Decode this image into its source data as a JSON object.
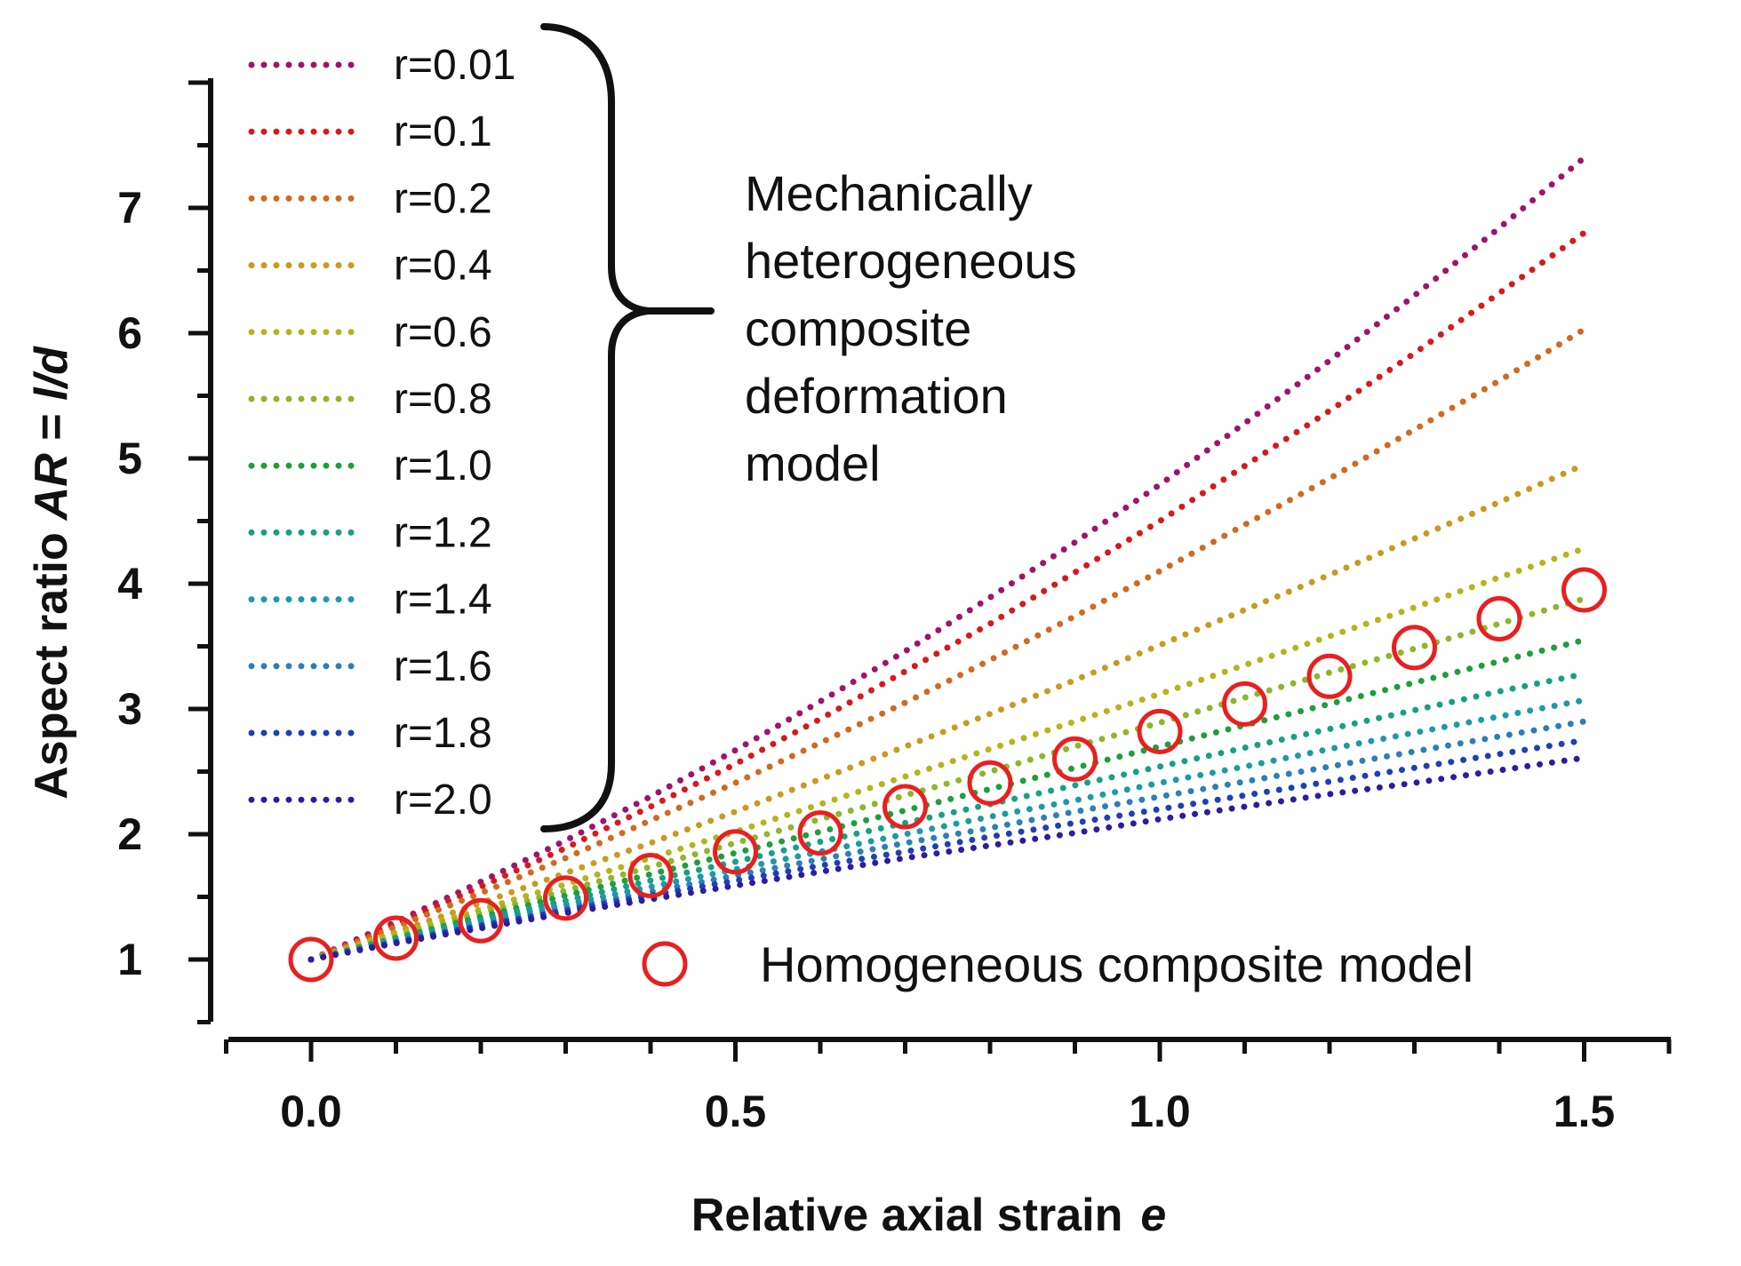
{
  "chart_data": {
    "type": "line",
    "title": "",
    "xlabel": "Relative axial strain",
    "xlabel_symbol": "e",
    "ylabel": "Aspect ratio",
    "ylabel_symbol": "AR",
    "ylabel_eq": " = ",
    "ylabel_formula": "l/d",
    "xlim": [
      -0.1,
      1.6
    ],
    "ylim": [
      0.5,
      7.8
    ],
    "xticks": [
      "0.0",
      "0.5",
      "1.0",
      "1.5"
    ],
    "xtick_values": [
      0,
      0.5,
      1.0,
      1.5
    ],
    "yticks": [
      "1",
      "2",
      "3",
      "4",
      "5",
      "6",
      "7"
    ],
    "ytick_values": [
      1,
      2,
      3,
      4,
      5,
      6,
      7
    ],
    "annotation_lines": [
      "Mechanically",
      "heterogeneous",
      "composite",
      "deformation",
      "model"
    ],
    "series": [
      {
        "name": "r=0.01",
        "style": "dotted",
        "color": "#a0136b",
        "x": [
          0,
          0.1,
          0.2,
          0.3,
          0.4,
          0.5,
          0.6,
          0.7,
          0.8,
          0.9,
          1.0,
          1.1,
          1.2,
          1.3,
          1.4,
          1.5
        ],
        "values": [
          1.0,
          1.3,
          1.62,
          1.95,
          2.3,
          2.67,
          3.06,
          3.46,
          3.89,
          4.33,
          4.79,
          5.28,
          5.78,
          6.3,
          6.84,
          7.4
        ]
      },
      {
        "name": "r=0.1",
        "style": "dotted",
        "color": "#d7191c",
        "x": [
          0,
          0.1,
          0.2,
          0.3,
          0.4,
          0.5,
          0.6,
          0.7,
          0.8,
          0.9,
          1.0,
          1.1,
          1.2,
          1.3,
          1.4,
          1.5
        ],
        "values": [
          1.0,
          1.28,
          1.58,
          1.89,
          2.22,
          2.56,
          2.92,
          3.3,
          3.68,
          4.09,
          4.5,
          4.94,
          5.38,
          5.84,
          6.32,
          6.8
        ]
      },
      {
        "name": "r=0.2",
        "style": "dotted",
        "color": "#d2691e",
        "x": [
          0,
          0.1,
          0.2,
          0.3,
          0.4,
          0.5,
          0.6,
          0.7,
          0.8,
          0.9,
          1.0,
          1.1,
          1.2,
          1.3,
          1.4,
          1.5
        ],
        "values": [
          1.0,
          1.26,
          1.53,
          1.81,
          2.11,
          2.41,
          2.73,
          3.05,
          3.39,
          3.74,
          4.1,
          4.47,
          4.84,
          5.23,
          5.62,
          6.03
        ]
      },
      {
        "name": "r=0.4",
        "style": "dotted",
        "color": "#c89a1f",
        "x": [
          0,
          0.1,
          0.2,
          0.3,
          0.4,
          0.5,
          0.6,
          0.7,
          0.8,
          0.9,
          1.0,
          1.1,
          1.2,
          1.3,
          1.4,
          1.5
        ],
        "values": [
          1.0,
          1.22,
          1.45,
          1.69,
          1.93,
          2.18,
          2.44,
          2.7,
          2.96,
          3.23,
          3.51,
          3.79,
          4.07,
          4.36,
          4.65,
          4.95
        ]
      },
      {
        "name": "r=0.6",
        "style": "dotted",
        "color": "#b5b41a",
        "x": [
          0,
          0.1,
          0.2,
          0.3,
          0.4,
          0.5,
          0.6,
          0.7,
          0.8,
          0.9,
          1.0,
          1.1,
          1.2,
          1.3,
          1.4,
          1.5
        ],
        "values": [
          1.0,
          1.2,
          1.4,
          1.6,
          1.81,
          2.02,
          2.24,
          2.46,
          2.68,
          2.9,
          3.12,
          3.35,
          3.58,
          3.81,
          4.05,
          4.28
        ]
      },
      {
        "name": "r=0.8",
        "style": "dotted",
        "color": "#8fb52a",
        "x": [
          0,
          0.1,
          0.2,
          0.3,
          0.4,
          0.5,
          0.6,
          0.7,
          0.8,
          0.9,
          1.0,
          1.1,
          1.2,
          1.3,
          1.4,
          1.5
        ],
        "values": [
          1.0,
          1.18,
          1.37,
          1.55,
          1.74,
          1.93,
          2.12,
          2.31,
          2.5,
          2.7,
          2.89,
          3.09,
          3.29,
          3.48,
          3.68,
          3.88
        ]
      },
      {
        "name": "r=1.0",
        "style": "dotted",
        "color": "#1e9e3c",
        "x": [
          0,
          0.1,
          0.2,
          0.3,
          0.4,
          0.5,
          0.6,
          0.7,
          0.8,
          0.9,
          1.0,
          1.1,
          1.2,
          1.3,
          1.4,
          1.5
        ],
        "values": [
          1.0,
          1.17,
          1.34,
          1.51,
          1.68,
          1.85,
          2.02,
          2.19,
          2.36,
          2.53,
          2.7,
          2.87,
          3.04,
          3.21,
          3.38,
          3.55
        ]
      },
      {
        "name": "r=1.2",
        "style": "dotted",
        "color": "#16a085",
        "x": [
          0,
          0.1,
          0.2,
          0.3,
          0.4,
          0.5,
          0.6,
          0.7,
          0.8,
          0.9,
          1.0,
          1.1,
          1.2,
          1.3,
          1.4,
          1.5
        ],
        "values": [
          1.0,
          1.16,
          1.32,
          1.47,
          1.63,
          1.78,
          1.94,
          2.09,
          2.24,
          2.39,
          2.54,
          2.69,
          2.84,
          2.99,
          3.14,
          3.28
        ]
      },
      {
        "name": "r=1.4",
        "style": "dotted",
        "color": "#1c9aa6",
        "x": [
          0,
          0.1,
          0.2,
          0.3,
          0.4,
          0.5,
          0.6,
          0.7,
          0.8,
          0.9,
          1.0,
          1.1,
          1.2,
          1.3,
          1.4,
          1.5
        ],
        "values": [
          1.0,
          1.15,
          1.3,
          1.44,
          1.58,
          1.72,
          1.86,
          2.0,
          2.14,
          2.27,
          2.41,
          2.54,
          2.68,
          2.81,
          2.94,
          3.07
        ]
      },
      {
        "name": "r=1.6",
        "style": "dotted",
        "color": "#2c7fb8",
        "x": [
          0,
          0.1,
          0.2,
          0.3,
          0.4,
          0.5,
          0.6,
          0.7,
          0.8,
          0.9,
          1.0,
          1.1,
          1.2,
          1.3,
          1.4,
          1.5
        ],
        "values": [
          1.0,
          1.14,
          1.28,
          1.41,
          1.54,
          1.67,
          1.8,
          1.93,
          2.05,
          2.18,
          2.3,
          2.42,
          2.54,
          2.66,
          2.78,
          2.9
        ]
      },
      {
        "name": "r=1.8",
        "style": "dotted",
        "color": "#1f3fb5",
        "x": [
          0,
          0.1,
          0.2,
          0.3,
          0.4,
          0.5,
          0.6,
          0.7,
          0.8,
          0.9,
          1.0,
          1.1,
          1.2,
          1.3,
          1.4,
          1.5
        ],
        "values": [
          1.0,
          1.14,
          1.27,
          1.39,
          1.51,
          1.63,
          1.75,
          1.86,
          1.98,
          2.09,
          2.2,
          2.31,
          2.42,
          2.53,
          2.64,
          2.75
        ]
      },
      {
        "name": "r=2.0",
        "style": "dotted",
        "color": "#2b1d9e",
        "x": [
          0,
          0.1,
          0.2,
          0.3,
          0.4,
          0.5,
          0.6,
          0.7,
          0.8,
          0.9,
          1.0,
          1.1,
          1.2,
          1.3,
          1.4,
          1.5
        ],
        "values": [
          1.0,
          1.13,
          1.25,
          1.37,
          1.48,
          1.59,
          1.7,
          1.81,
          1.91,
          2.01,
          2.12,
          2.22,
          2.32,
          2.41,
          2.51,
          2.61
        ]
      },
      {
        "name": "Homogeneous composite model",
        "style": "marker",
        "color": "#e8201f",
        "x": [
          0,
          0.1,
          0.2,
          0.3,
          0.4,
          0.5,
          0.6,
          0.7,
          0.8,
          0.9,
          1.0,
          1.1,
          1.2,
          1.3,
          1.4,
          1.5
        ],
        "values": [
          1.0,
          1.17,
          1.31,
          1.49,
          1.67,
          1.86,
          2.01,
          2.22,
          2.41,
          2.6,
          2.82,
          3.04,
          3.26,
          3.49,
          3.72,
          3.95
        ]
      }
    ]
  }
}
